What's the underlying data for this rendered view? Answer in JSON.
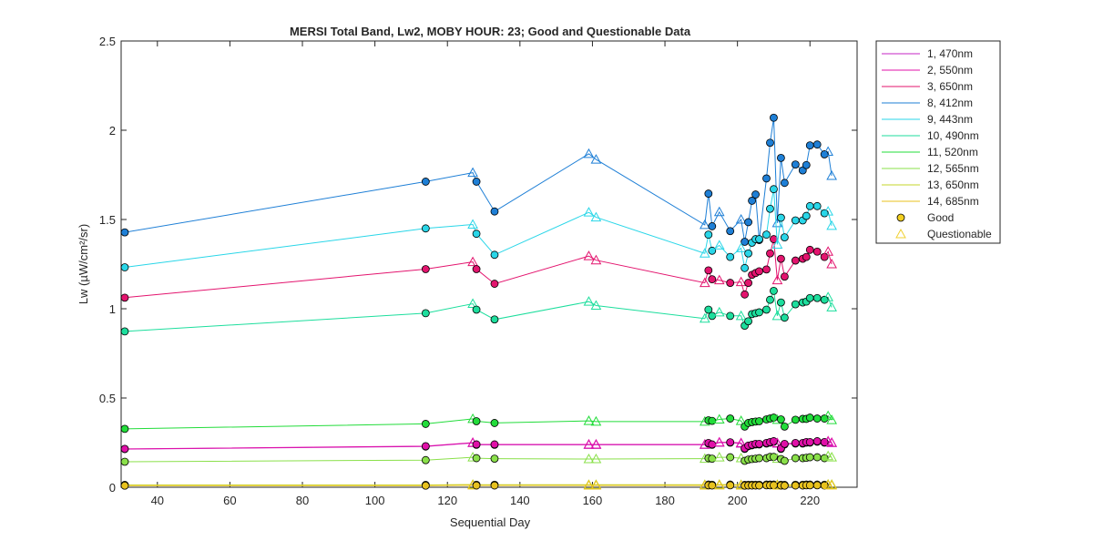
{
  "chart_data": {
    "type": "line",
    "title": "MERSI Total Band,  Lw2, MOBY HOUR: 23;  Good and Questionable Data",
    "xlabel": "Sequential Day",
    "ylabel": "Lw (µW/cm²/sr)",
    "xlim": [
      30,
      233
    ],
    "ylim": [
      0,
      2.5
    ],
    "xticks": [
      40,
      60,
      80,
      100,
      120,
      140,
      160,
      180,
      200,
      220
    ],
    "yticks": [
      0,
      0.5,
      1,
      1.5,
      2,
      2.5
    ],
    "xtick_labels": [
      "40",
      "60",
      "80",
      "100",
      "120",
      "140",
      "160",
      "180",
      "200",
      "220"
    ],
    "ytick_labels": [
      "0",
      "0.5",
      "1",
      "1.5",
      "2",
      "2.5"
    ],
    "grid": false,
    "legend_position": "outside-right",
    "marker_legend": [
      {
        "label": "Good",
        "marker": "circle",
        "fill": "#f2cf1f"
      },
      {
        "label": "Questionable",
        "marker": "triangle",
        "stroke": "#f0d030"
      }
    ],
    "x": [
      31,
      114,
      127,
      128,
      133,
      159,
      161,
      191,
      192,
      193,
      195,
      198,
      201,
      202,
      203,
      204,
      205,
      206,
      208,
      209,
      210,
      211,
      212,
      213,
      216,
      218,
      219,
      220,
      222,
      224,
      225,
      226
    ],
    "quality": [
      "G",
      "G",
      "Q",
      "G",
      "G",
      "Q",
      "Q",
      "Q",
      "G",
      "G",
      "Q",
      "G",
      "Q",
      "G",
      "G",
      "G",
      "G",
      "G",
      "G",
      "G",
      "G",
      "Q",
      "G",
      "G",
      "G",
      "G",
      "G",
      "G",
      "G",
      "G",
      "Q",
      "Q"
    ],
    "series": [
      {
        "name": "1, 470nm",
        "color": "#c425c4",
        "values": [
          0.214,
          0.228,
          0.248,
          0.238,
          0.238,
          0.238,
          0.238,
          0.238,
          0.245,
          0.238,
          0.25,
          0.25,
          0.245,
          0.215,
          0.23,
          0.235,
          0.24,
          0.24,
          0.245,
          0.25,
          0.255,
          0.245,
          0.215,
          0.24,
          0.245,
          0.245,
          0.25,
          0.25,
          0.255,
          0.25,
          0.255,
          0.248
        ]
      },
      {
        "name": "2, 550nm",
        "color": "#e010a8",
        "values": [
          0.215,
          0.23,
          0.25,
          0.24,
          0.24,
          0.24,
          0.24,
          0.24,
          0.248,
          0.24,
          0.252,
          0.252,
          0.248,
          0.218,
          0.233,
          0.238,
          0.243,
          0.243,
          0.248,
          0.253,
          0.258,
          0.248,
          0.218,
          0.243,
          0.248,
          0.248,
          0.253,
          0.253,
          0.258,
          0.253,
          0.258,
          0.25
        ]
      },
      {
        "name": "3, 650nm",
        "color": "#e3146e",
        "values": [
          1.062,
          1.222,
          1.262,
          1.222,
          1.14,
          1.295,
          1.272,
          1.145,
          1.215,
          1.165,
          1.16,
          1.145,
          1.15,
          1.08,
          1.145,
          1.19,
          1.2,
          1.21,
          1.22,
          1.31,
          1.39,
          1.16,
          1.28,
          1.18,
          1.27,
          1.28,
          1.29,
          1.33,
          1.32,
          1.29,
          1.32,
          1.25
        ]
      },
      {
        "name": "8, 412nm",
        "color": "#1e7fd6",
        "values": [
          1.428,
          1.712,
          1.762,
          1.712,
          1.545,
          1.868,
          1.836,
          1.47,
          1.645,
          1.462,
          1.542,
          1.435,
          1.5,
          1.375,
          1.485,
          1.605,
          1.64,
          1.385,
          1.73,
          1.93,
          2.07,
          1.48,
          1.845,
          1.705,
          1.808,
          1.775,
          1.805,
          1.915,
          1.92,
          1.865,
          1.88,
          1.745
        ]
      },
      {
        "name": "9, 443nm",
        "color": "#29d6e8",
        "values": [
          1.232,
          1.45,
          1.472,
          1.42,
          1.302,
          1.54,
          1.512,
          1.31,
          1.415,
          1.325,
          1.355,
          1.29,
          1.34,
          1.228,
          1.31,
          1.37,
          1.39,
          1.39,
          1.415,
          1.56,
          1.67,
          1.36,
          1.51,
          1.4,
          1.495,
          1.495,
          1.52,
          1.575,
          1.575,
          1.535,
          1.545,
          1.465
        ]
      },
      {
        "name": "10, 490nm",
        "color": "#1dde9d",
        "values": [
          0.873,
          0.975,
          1.028,
          0.995,
          0.94,
          1.04,
          1.018,
          0.945,
          0.995,
          0.96,
          0.98,
          0.96,
          0.96,
          0.905,
          0.93,
          0.97,
          0.975,
          0.98,
          0.995,
          1.05,
          1.1,
          0.96,
          1.035,
          0.95,
          1.025,
          1.035,
          1.04,
          1.06,
          1.06,
          1.05,
          1.065,
          1.008
        ]
      },
      {
        "name": "11, 520nm",
        "color": "#22dc3a",
        "values": [
          0.327,
          0.355,
          0.383,
          0.37,
          0.36,
          0.372,
          0.368,
          0.368,
          0.375,
          0.372,
          0.38,
          0.385,
          0.372,
          0.34,
          0.36,
          0.365,
          0.368,
          0.37,
          0.38,
          0.385,
          0.39,
          0.378,
          0.38,
          0.34,
          0.378,
          0.383,
          0.383,
          0.39,
          0.385,
          0.385,
          0.4,
          0.377
        ]
      },
      {
        "name": "12, 565nm",
        "color": "#8ae04a",
        "values": [
          0.143,
          0.152,
          0.168,
          0.163,
          0.16,
          0.158,
          0.158,
          0.16,
          0.163,
          0.16,
          0.168,
          0.168,
          0.163,
          0.148,
          0.155,
          0.158,
          0.16,
          0.163,
          0.163,
          0.17,
          0.17,
          0.16,
          0.158,
          0.148,
          0.163,
          0.163,
          0.165,
          0.168,
          0.168,
          0.163,
          0.175,
          0.168
        ]
      },
      {
        "name": "13, 650nm",
        "color": "#c5d42a",
        "values": [
          0.013,
          0.013,
          0.015,
          0.014,
          0.014,
          0.014,
          0.014,
          0.014,
          0.015,
          0.014,
          0.015,
          0.015,
          0.014,
          0.013,
          0.014,
          0.014,
          0.014,
          0.014,
          0.015,
          0.015,
          0.015,
          0.014,
          0.014,
          0.013,
          0.014,
          0.014,
          0.015,
          0.015,
          0.015,
          0.014,
          0.016,
          0.015
        ]
      },
      {
        "name": "14, 685nm",
        "color": "#e8c21e",
        "values": [
          0.009,
          0.009,
          0.011,
          0.01,
          0.01,
          0.01,
          0.01,
          0.01,
          0.011,
          0.01,
          0.011,
          0.011,
          0.01,
          0.009,
          0.01,
          0.01,
          0.01,
          0.01,
          0.011,
          0.011,
          0.011,
          0.01,
          0.01,
          0.009,
          0.01,
          0.01,
          0.011,
          0.011,
          0.011,
          0.01,
          0.012,
          0.011
        ]
      }
    ]
  }
}
